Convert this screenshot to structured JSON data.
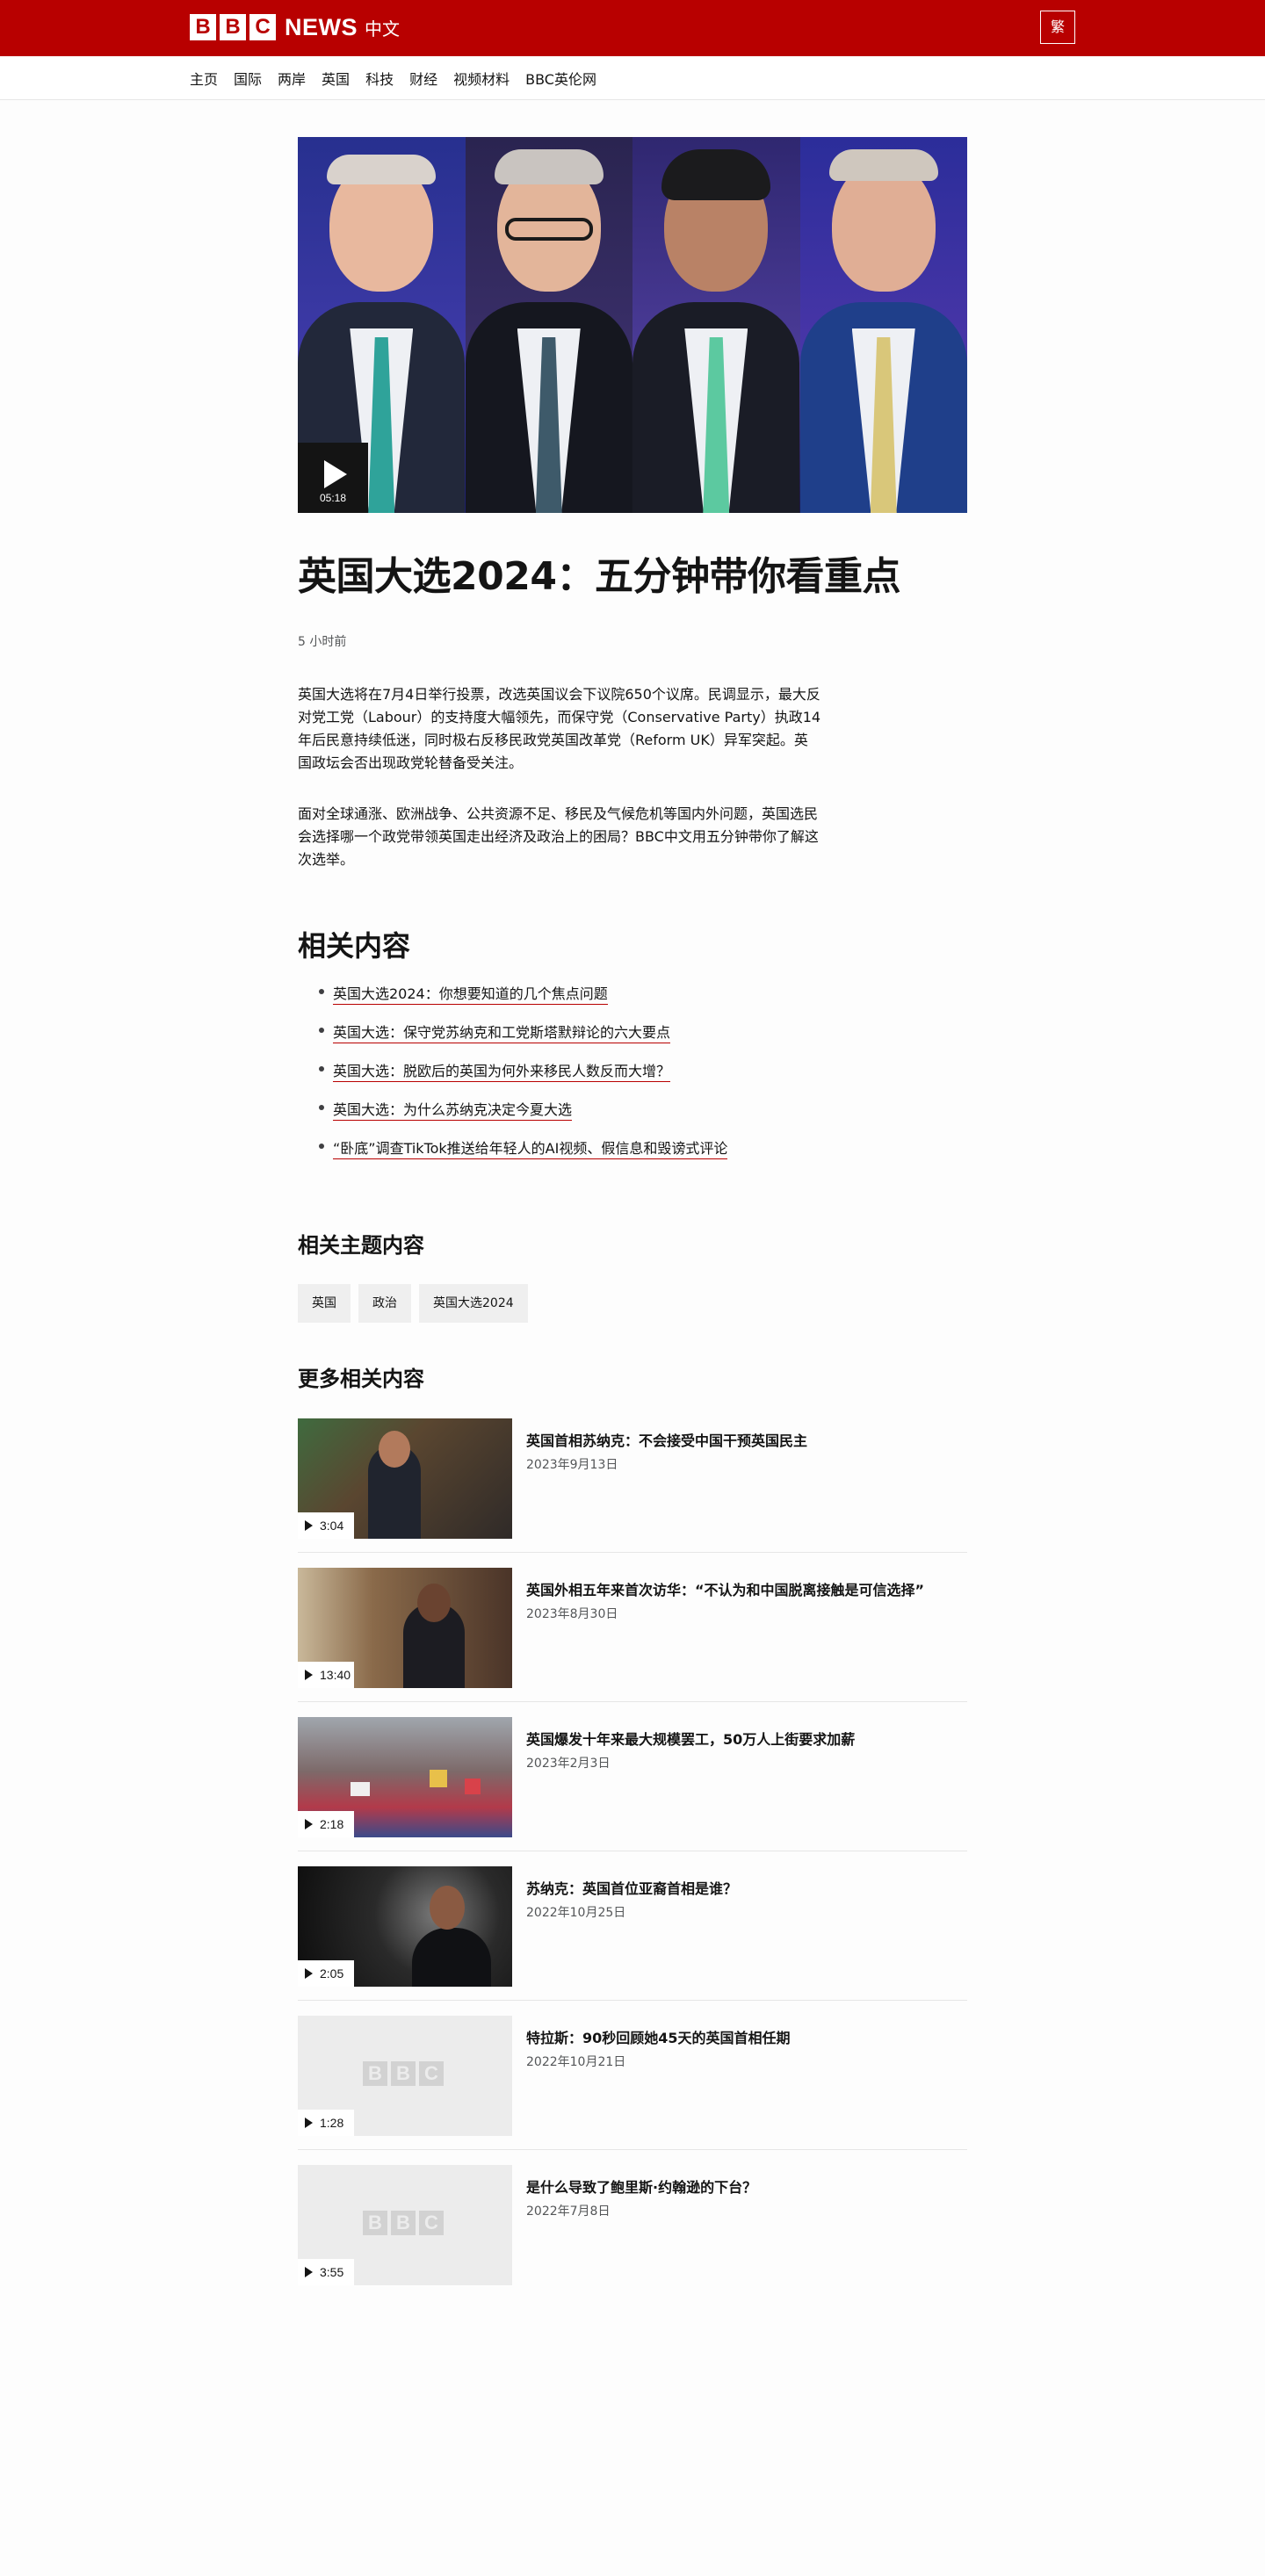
{
  "header": {
    "logo_letters": [
      "B",
      "B",
      "C"
    ],
    "logo_news": "NEWS",
    "logo_lang": "中文",
    "lang_toggle": "繁"
  },
  "nav": {
    "items": [
      "主页",
      "国际",
      "两岸",
      "英国",
      "科技",
      "财经",
      "视频材料",
      "BBC英伦网"
    ]
  },
  "hero": {
    "duration": "05:18",
    "play_icon": "play-icon"
  },
  "article": {
    "title": "英国大选2024：五分钟带你看重点",
    "time": "5 小时前",
    "paragraphs": [
      "英国大选将在7月4日举行投票，改选英国议会下议院650个议席。民调显示，最大反对党工党（Labour）的支持度大幅领先，而保守党（Conservative Party）执政14年后民意持续低迷，同时极右反移民政党英国改革党（Reform UK）异军突起。英国政坛会否出现政党轮替备受关注。",
      "面对全球通涨、欧洲战争、公共资源不足、移民及气候危机等国内外问题，英国选民会选择哪一个政党带领英国走出经济及政治上的困局？BBC中文用五分钟带你了解这次选举。"
    ]
  },
  "related": {
    "heading": "相关内容",
    "links": [
      "英国大选2024：你想要知道的几个焦点问题",
      "英国大选：保守党苏纳克和工党斯塔默辩论的六大要点",
      "英国大选：脱欧后的英国为何外来移民人数反而大增？",
      "英国大选：为什么苏纳克决定今夏大选",
      "“卧底”调查TikTok推送给年轻人的AI视频、假信息和毁谤式评论"
    ]
  },
  "topics": {
    "heading": "相关主题内容",
    "tags": [
      "英国",
      "政治",
      "英国大选2024"
    ]
  },
  "more": {
    "heading": "更多相关内容",
    "items": [
      {
        "title": "英国首相苏纳克：不会接受中国干预英国民主",
        "date": "2023年9月13日",
        "duration": "3:04"
      },
      {
        "title": "英国外相五年来首次访华：“不认为和中国脱离接触是可信选择”",
        "date": "2023年8月30日",
        "duration": "13:40"
      },
      {
        "title": "英国爆发十年来最大规模罢工，50万人上街要求加薪",
        "date": "2023年2月3日",
        "duration": "2:18"
      },
      {
        "title": "苏纳克：英国首位亚裔首相是谁？",
        "date": "2022年10月25日",
        "duration": "2:05"
      },
      {
        "title": "特拉斯：90秒回顾她45天的英国首相任期",
        "date": "2022年10月21日",
        "duration": "1:28"
      },
      {
        "title": "是什么导致了鲍里斯·约翰逊的下台？",
        "date": "2022年7月8日",
        "duration": "3:55"
      }
    ]
  },
  "colors": {
    "brand": "#b80000",
    "text": "#141414",
    "muted": "#545658"
  }
}
